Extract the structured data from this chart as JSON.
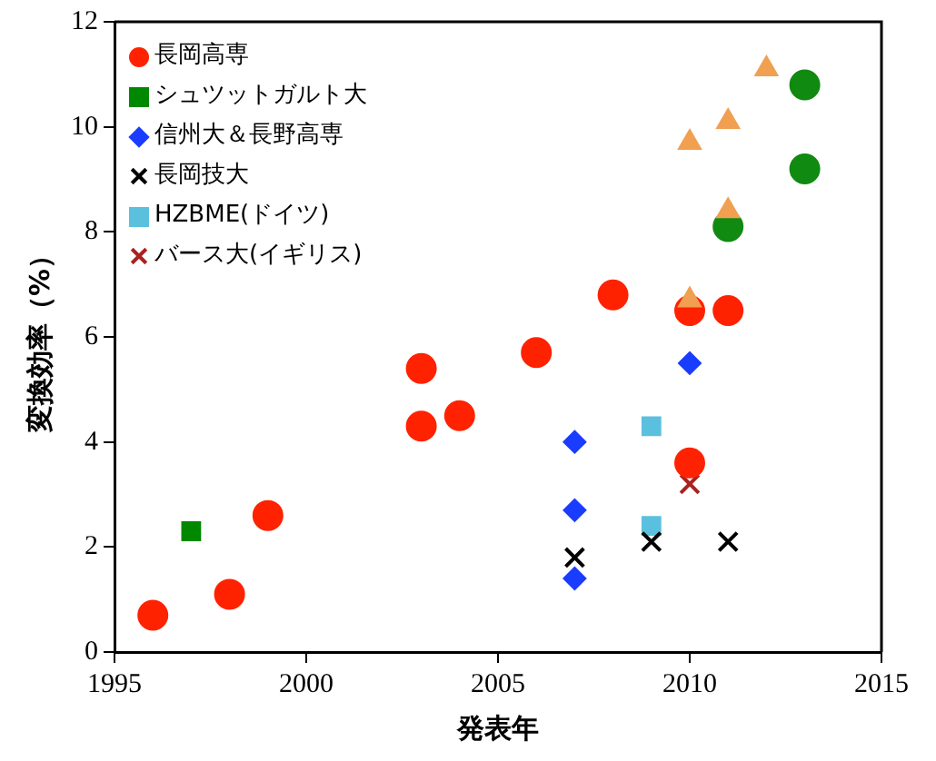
{
  "chart_data": {
    "type": "scatter",
    "xlabel": "発表年",
    "ylabel": "変換効率（%）",
    "xlim": [
      1995,
      2015
    ],
    "xticks": [
      1995,
      2000,
      2005,
      2010,
      2015
    ],
    "ylim": [
      0,
      12
    ],
    "yticks": [
      0,
      2,
      4,
      6,
      8,
      10,
      12
    ],
    "grid": false,
    "legend": "top left",
    "series": [
      {
        "name": "長岡高専",
        "color": "#ff2200",
        "marker": "circle",
        "x": [
          1996,
          1998,
          1999,
          2003,
          2003,
          2004,
          2006,
          2008,
          2010,
          2011,
          2010
        ],
        "values": [
          0.7,
          1.1,
          2.6,
          4.3,
          5.4,
          4.5,
          5.7,
          6.8,
          6.5,
          6.5,
          3.6
        ]
      },
      {
        "name": "シュツットガルト大",
        "color": "#008800",
        "marker": "square",
        "x": [
          1997
        ],
        "values": [
          2.3
        ]
      },
      {
        "name": "信州大＆長野高専",
        "color": "#1a3cff",
        "marker": "diamond",
        "x": [
          2007,
          2007,
          2007,
          2010
        ],
        "values": [
          4.0,
          2.7,
          1.4,
          5.5
        ]
      },
      {
        "name": "長岡技大",
        "color": "#000000",
        "marker": "cross",
        "x": [
          2007,
          2009,
          2011
        ],
        "values": [
          1.8,
          2.1,
          2.1
        ]
      },
      {
        "name": "HZBME(ドイツ)",
        "color": "#5bc0de",
        "marker": "square",
        "x": [
          2009,
          2009
        ],
        "values": [
          4.3,
          2.4
        ]
      },
      {
        "color": "#f0a050",
        "marker": "triangle",
        "x": [
          2010,
          2010,
          2011,
          2012,
          2011
        ],
        "values": [
          6.7,
          9.7,
          10.1,
          11.1,
          8.4
        ]
      },
      {
        "name": "バース大(イギリス)",
        "color": "#aa2222",
        "marker": "cross",
        "x": [
          2010
        ],
        "values": [
          3.2
        ]
      },
      {
        "color": "#108a10",
        "marker": "circle",
        "x": [
          2013,
          2013,
          2011
        ],
        "values": [
          10.8,
          9.2,
          8.1
        ]
      }
    ]
  }
}
